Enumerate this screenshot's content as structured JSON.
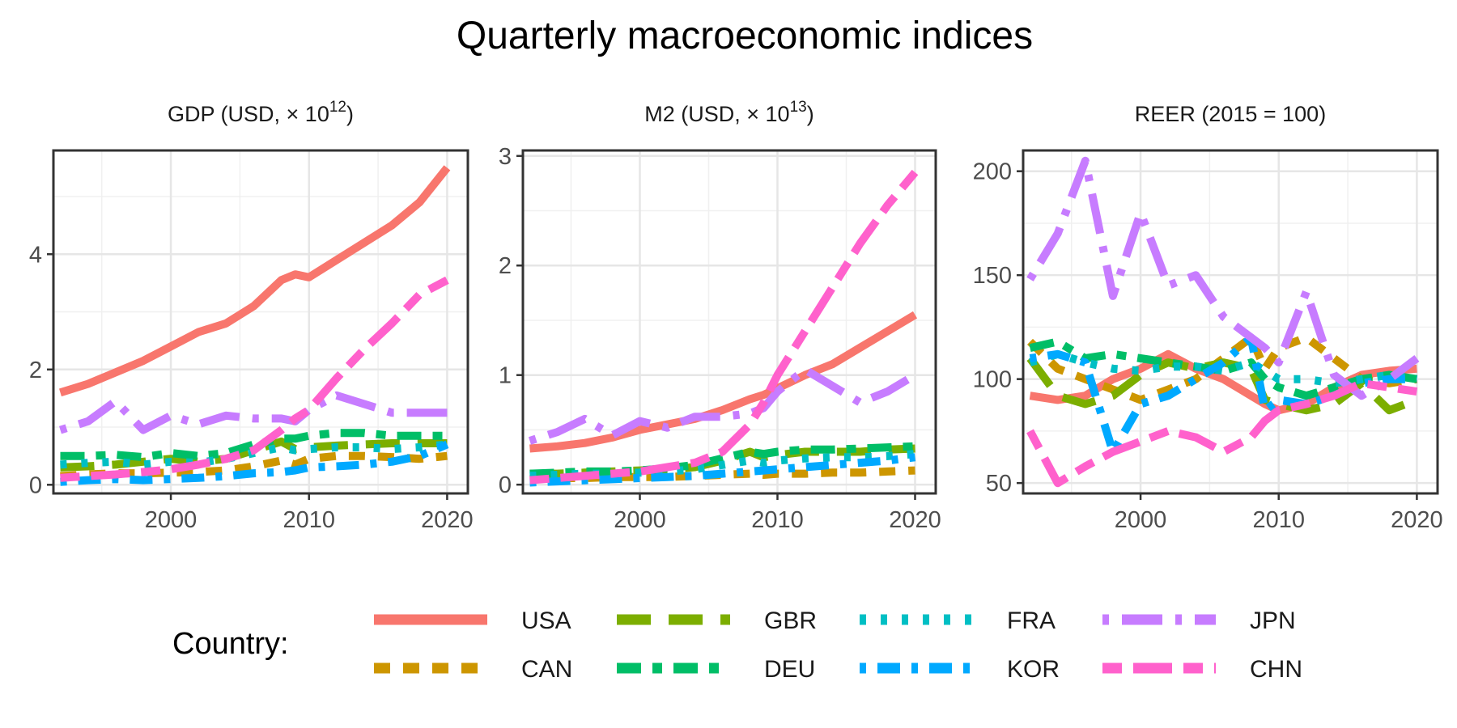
{
  "chart_data": {
    "title": "Quarterly macroeconomic indices",
    "legend": {
      "title": "Country:",
      "placement": "bottom",
      "entries": [
        {
          "name": "USA",
          "color": "#F8766D",
          "dash": "solid"
        },
        {
          "name": "CAN",
          "color": "#CD9600",
          "dash": "dashed"
        },
        {
          "name": "GBR",
          "color": "#7CAE00",
          "dash": "longdash"
        },
        {
          "name": "DEU",
          "color": "#00BE67",
          "dash": "twodash"
        },
        {
          "name": "FRA",
          "color": "#00BFC4",
          "dash": "dotted"
        },
        {
          "name": "KOR",
          "color": "#00A9FF",
          "dash": "dotdash"
        },
        {
          "name": "JPN",
          "color": "#C77CFF",
          "dash": "dotlong"
        },
        {
          "name": "CHN",
          "color": "#FF61CC",
          "dash": "dashlong"
        }
      ]
    },
    "panels": [
      {
        "type": "line",
        "title": "GDP (USD,  × 10",
        "title_sup": "12",
        "title_end": ")",
        "xlim": [
          1991.5,
          2021.5
        ],
        "ylim": [
          -0.15,
          5.8
        ],
        "x_ticks": [
          2000,
          2010,
          2020
        ],
        "x_tick_labels": [
          "2000",
          "2010",
          "2020"
        ],
        "y_ticks": [
          0,
          2,
          4
        ],
        "y_tick_labels": [
          "0",
          "2",
          "4"
        ],
        "grid": true,
        "x": [
          1992,
          1994,
          1996,
          1998,
          2000,
          2002,
          2004,
          2006,
          2008,
          2009,
          2010,
          2012,
          2014,
          2016,
          2018,
          2020
        ],
        "series": [
          {
            "name": "USA",
            "values": [
              1.6,
              1.75,
              1.95,
              2.15,
              2.4,
              2.65,
              2.8,
              3.1,
              3.55,
              3.65,
              3.6,
              3.9,
              4.2,
              4.5,
              4.9,
              5.5
            ]
          },
          {
            "name": "CAN",
            "values": [
              0.15,
              0.18,
              0.2,
              0.2,
              0.21,
              0.22,
              0.25,
              0.32,
              0.42,
              0.35,
              0.45,
              0.5,
              0.5,
              0.48,
              0.45,
              0.5
            ]
          },
          {
            "name": "GBR",
            "values": [
              0.3,
              0.32,
              0.35,
              0.4,
              0.45,
              0.4,
              0.45,
              0.6,
              0.75,
              0.62,
              0.65,
              0.68,
              0.7,
              0.72,
              0.72,
              0.72
            ]
          },
          {
            "name": "DEU",
            "values": [
              0.5,
              0.5,
              0.52,
              0.48,
              0.55,
              0.5,
              0.55,
              0.7,
              0.8,
              0.8,
              0.85,
              0.9,
              0.9,
              0.85,
              0.85,
              0.85
            ]
          },
          {
            "name": "FRA",
            "values": [
              0.35,
              0.38,
              0.4,
              0.35,
              0.4,
              0.38,
              0.45,
              0.55,
              0.65,
              0.6,
              0.62,
              0.65,
              0.65,
              0.62,
              0.65,
              0.7
            ]
          },
          {
            "name": "KOR",
            "values": [
              0.05,
              0.08,
              0.1,
              0.08,
              0.1,
              0.12,
              0.15,
              0.2,
              0.22,
              0.25,
              0.3,
              0.32,
              0.35,
              0.4,
              0.5,
              0.7
            ]
          },
          {
            "name": "JPN",
            "values": [
              0.95,
              1.1,
              1.45,
              0.95,
              1.2,
              1.05,
              1.2,
              1.15,
              1.15,
              1.1,
              1.3,
              1.55,
              1.4,
              1.25,
              1.25,
              1.25
            ]
          },
          {
            "name": "CHN",
            "values": [
              0.12,
              0.15,
              0.18,
              0.22,
              0.27,
              0.35,
              0.45,
              0.6,
              0.95,
              1.15,
              1.3,
              1.85,
              2.35,
              2.8,
              3.3,
              3.55
            ]
          }
        ]
      },
      {
        "type": "line",
        "title": "M2 (USD,  × 10",
        "title_sup": "13",
        "title_end": ")",
        "xlim": [
          1991.5,
          2021.5
        ],
        "ylim": [
          -0.08,
          3.05
        ],
        "x_ticks": [
          2000,
          2010,
          2020
        ],
        "x_tick_labels": [
          "2000",
          "2010",
          "2020"
        ],
        "y_ticks": [
          0,
          1,
          2,
          3
        ],
        "y_tick_labels": [
          "0",
          "1",
          "2",
          "3"
        ],
        "grid": true,
        "x": [
          1992,
          1994,
          1996,
          1998,
          2000,
          2002,
          2004,
          2006,
          2008,
          2009,
          2010,
          2012,
          2014,
          2016,
          2018,
          2020
        ],
        "series": [
          {
            "name": "USA",
            "values": [
              0.33,
              0.35,
              0.38,
              0.43,
              0.5,
              0.55,
              0.6,
              0.68,
              0.78,
              0.82,
              0.88,
              1.0,
              1.1,
              1.25,
              1.4,
              1.55
            ]
          },
          {
            "name": "CAN",
            "values": [
              0.05,
              0.06,
              0.06,
              0.07,
              0.07,
              0.07,
              0.08,
              0.09,
              0.1,
              0.09,
              0.1,
              0.1,
              0.11,
              0.11,
              0.12,
              0.13
            ]
          },
          {
            "name": "GBR",
            "values": [
              0.1,
              0.1,
              0.11,
              0.12,
              0.13,
              0.14,
              0.16,
              0.22,
              0.3,
              0.25,
              0.27,
              0.3,
              0.3,
              0.3,
              0.32,
              0.33
            ]
          },
          {
            "name": "DEU",
            "values": [
              0.1,
              0.11,
              0.12,
              0.12,
              0.13,
              0.15,
              0.18,
              0.24,
              0.3,
              0.28,
              0.3,
              0.32,
              0.32,
              0.33,
              0.34,
              0.35
            ]
          },
          {
            "name": "FRA",
            "values": [
              0.08,
              0.09,
              0.1,
              0.1,
              0.11,
              0.12,
              0.14,
              0.18,
              0.22,
              0.2,
              0.22,
              0.24,
              0.25,
              0.25,
              0.26,
              0.28
            ]
          },
          {
            "name": "KOR",
            "values": [
              0.02,
              0.03,
              0.04,
              0.05,
              0.06,
              0.07,
              0.08,
              0.1,
              0.12,
              0.13,
              0.14,
              0.16,
              0.18,
              0.2,
              0.22,
              0.25
            ]
          },
          {
            "name": "JPN",
            "values": [
              0.4,
              0.48,
              0.6,
              0.45,
              0.58,
              0.52,
              0.62,
              0.62,
              0.65,
              0.7,
              0.85,
              1.05,
              0.9,
              0.75,
              0.85,
              1.0
            ]
          },
          {
            "name": "CHN",
            "values": [
              0.04,
              0.06,
              0.08,
              0.1,
              0.12,
              0.16,
              0.2,
              0.3,
              0.55,
              0.75,
              1.0,
              1.4,
              1.8,
              2.2,
              2.55,
              2.85
            ]
          }
        ]
      },
      {
        "type": "line",
        "title": "REER (2015 = 100)",
        "title_sup": "",
        "title_end": "",
        "xlim": [
          1991.5,
          2021.5
        ],
        "ylim": [
          45,
          210
        ],
        "x_ticks": [
          2000,
          2010,
          2020
        ],
        "x_tick_labels": [
          "2000",
          "2010",
          "2020"
        ],
        "y_ticks": [
          50,
          100,
          150,
          200
        ],
        "y_tick_labels": [
          "50",
          "100",
          "150",
          "200"
        ],
        "grid": true,
        "x": [
          1992,
          1994,
          1996,
          1998,
          2000,
          2002,
          2004,
          2006,
          2008,
          2009,
          2010,
          2012,
          2014,
          2016,
          2018,
          2020
        ],
        "series": [
          {
            "name": "USA",
            "values": [
              92,
              90,
              92,
              100,
              105,
              112,
              105,
              100,
              92,
              88,
              85,
              88,
              96,
              102,
              104,
              105
            ]
          },
          {
            "name": "CAN",
            "values": [
              118,
              105,
              100,
              95,
              90,
              95,
              100,
              110,
              120,
              105,
              115,
              120,
              110,
              100,
              98,
              100
            ]
          },
          {
            "name": "GBR",
            "values": [
              110,
              92,
              88,
              92,
              102,
              108,
              105,
              108,
              105,
              90,
              88,
              85,
              88,
              98,
              85,
              90
            ]
          },
          {
            "name": "DEU",
            "values": [
              115,
              118,
              110,
              112,
              110,
              108,
              106,
              104,
              108,
              100,
              96,
              92,
              96,
              100,
              102,
              100
            ]
          },
          {
            "name": "FRA",
            "values": [
              108,
              112,
              108,
              105,
              104,
              106,
              106,
              104,
              108,
              104,
              100,
              100,
              98,
              100,
              102,
              100
            ]
          },
          {
            "name": "KOR",
            "values": [
              110,
              112,
              108,
              65,
              88,
              92,
              100,
              108,
              120,
              85,
              90,
              88,
              92,
              98,
              100,
              100
            ]
          },
          {
            "name": "JPN",
            "values": [
              148,
              170,
              205,
              140,
              180,
              145,
              150,
              130,
              120,
              115,
              108,
              142,
              102,
              92,
              100,
              110
            ]
          },
          {
            "name": "CHN",
            "values": [
              75,
              50,
              58,
              65,
              70,
              75,
              72,
              65,
              72,
              80,
              85,
              88,
              92,
              98,
              96,
              94
            ]
          }
        ]
      }
    ]
  }
}
